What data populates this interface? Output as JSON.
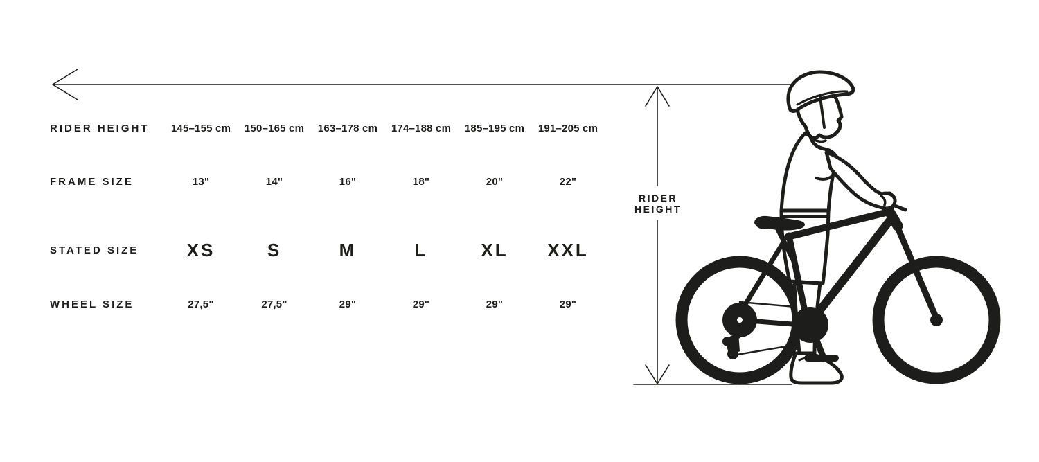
{
  "page": {
    "background_color": "#ffffff",
    "ink_color": "#1d1d1b"
  },
  "size_chart": {
    "rows": [
      {
        "id": "rider-height",
        "label": "RIDER HEIGHT",
        "emphasis": "normal",
        "values": [
          "145–155 cm",
          "150–165 cm",
          "163–178 cm",
          "174–188 cm",
          "185–195 cm",
          "191–205 cm"
        ]
      },
      {
        "id": "frame-size",
        "label": "FRAME SIZE",
        "emphasis": "normal",
        "values": [
          "13\"",
          "14\"",
          "16\"",
          "18\"",
          "20\"",
          "22\""
        ]
      },
      {
        "id": "stated-size",
        "label": "STATED SIZE",
        "emphasis": "large",
        "values": [
          "XS",
          "S",
          "M",
          "L",
          "XL",
          "XXL"
        ]
      },
      {
        "id": "wheel-size",
        "label": "WHEEL SIZE",
        "emphasis": "normal",
        "values": [
          "27,5\"",
          "27,5\"",
          "29\"",
          "29\"",
          "29\"",
          "29\""
        ]
      }
    ]
  },
  "measurement": {
    "label": "RIDER\nHEIGHT"
  }
}
